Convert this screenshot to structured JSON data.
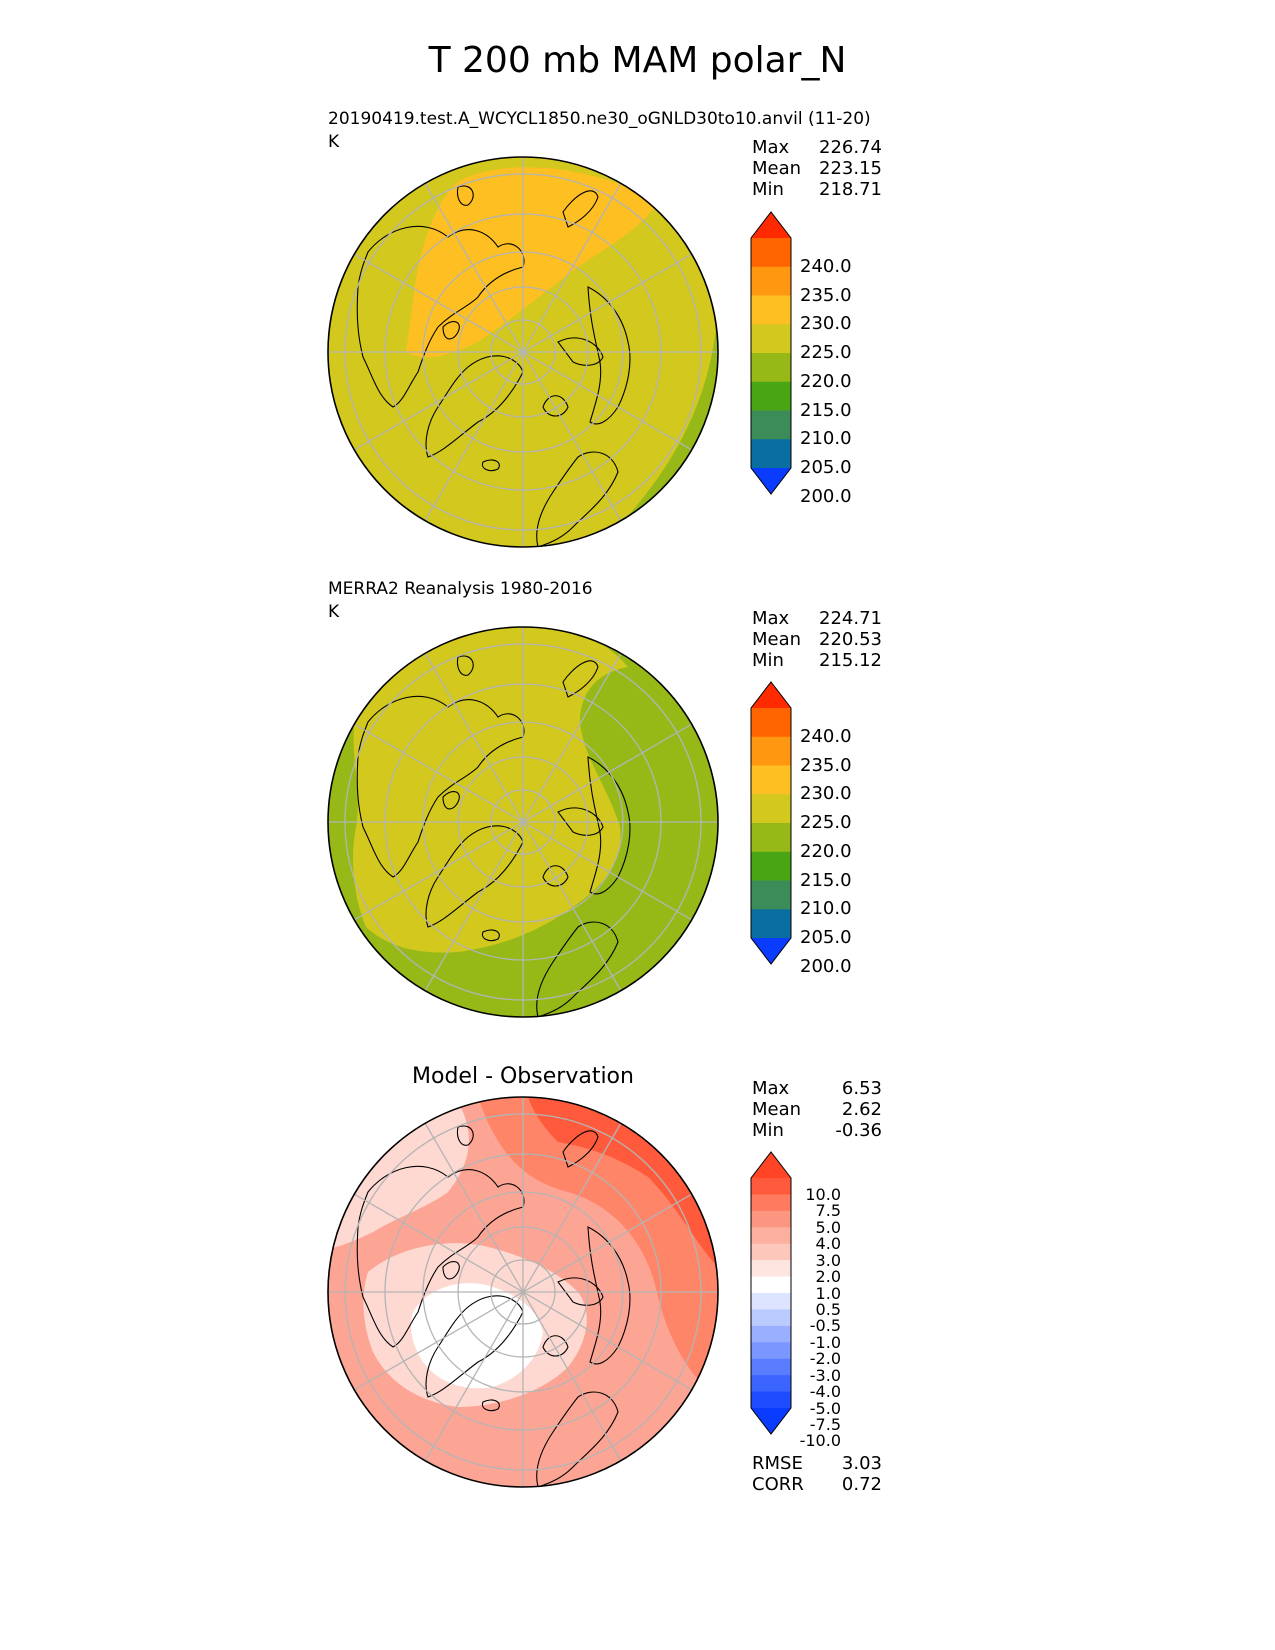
{
  "title": "T 200 mb MAM polar_N",
  "colors": {
    "c240_plus": "#ff2a00",
    "c235": "#ff6400",
    "c230": "#ff9810",
    "c225": "#fdbf22",
    "c220": "#d2c81e",
    "c215": "#96b918",
    "c210": "#4aa514",
    "c205": "#3c8c5a",
    "c200": "#0a6ea0",
    "c200_minus": "#0a3cff",
    "diff_deep_red": "#ff4525",
    "diff_light_red": "#fdd9d2",
    "diff_white": "#ffffff",
    "diff_blue": "#0a3cff",
    "grid": "#b4b4b4",
    "coast": "#000000"
  },
  "panels": [
    {
      "subtitle": "20190419.test.A_WCYCL1850.ne30_oGNLD30to10.anvil (11-20)",
      "units": "K",
      "stats": [
        {
          "label": "Max",
          "value": "226.74"
        },
        {
          "label": "Mean",
          "value": "223.15"
        },
        {
          "label": "Min",
          "value": "218.71"
        }
      ]
    },
    {
      "subtitle": "MERRA2 Reanalysis 1980-2016",
      "units": "K",
      "stats": [
        {
          "label": "Max",
          "value": "224.71"
        },
        {
          "label": "Mean",
          "value": "220.53"
        },
        {
          "label": "Min",
          "value": "215.12"
        }
      ]
    },
    {
      "subtitle": "Model - Observation",
      "stats": [
        {
          "label": "Max",
          "value": "6.53"
        },
        {
          "label": "Mean",
          "value": "2.62"
        },
        {
          "label": "Min",
          "value": "-0.36"
        }
      ],
      "metrics": [
        {
          "label": "RMSE",
          "value": "3.03"
        },
        {
          "label": "CORR",
          "value": "0.72"
        }
      ]
    }
  ],
  "chart_data": [
    {
      "type": "heatmap",
      "projection": "north polar stereographic",
      "title": "20190419.test.A_WCYCL1850.ne30_oGNLD30to10.anvil (11-20)",
      "units": "K",
      "field_stats": {
        "max": 226.74,
        "mean": 223.15,
        "min": 218.71
      },
      "colorbar_levels": [
        200,
        205,
        210,
        215,
        220,
        225,
        230,
        235,
        240
      ],
      "colorbar_tick_labels": [
        "240.0",
        "235.0",
        "230.0",
        "225.0",
        "220.0",
        "215.0",
        "210.0",
        "205.0",
        "200.0"
      ],
      "colorbar_extend": "both",
      "dominant_ranges": [
        {
          "range": [
            220,
            225
          ],
          "region": "most of domain"
        },
        {
          "range": [
            225,
            230
          ],
          "region": "North America / Canadian Archipelago sector"
        },
        {
          "range": [
            215,
            220
          ],
          "region": "Europe / North Atlantic edge"
        }
      ]
    },
    {
      "type": "heatmap",
      "projection": "north polar stereographic",
      "title": "MERRA2 Reanalysis 1980-2016",
      "units": "K",
      "field_stats": {
        "max": 224.71,
        "mean": 220.53,
        "min": 215.12
      },
      "colorbar_levels": [
        200,
        205,
        210,
        215,
        220,
        225,
        230,
        235,
        240
      ],
      "colorbar_tick_labels": [
        "240.0",
        "235.0",
        "230.0",
        "225.0",
        "220.0",
        "215.0",
        "210.0",
        "205.0",
        "200.0"
      ],
      "colorbar_extend": "both",
      "dominant_ranges": [
        {
          "range": [
            220,
            225
          ],
          "region": "polar cap and North America"
        },
        {
          "range": [
            215,
            220
          ],
          "region": "Eurasian / Atlantic outer ring"
        }
      ]
    },
    {
      "type": "heatmap",
      "projection": "north polar stereographic",
      "title": "Model - Observation",
      "field_stats": {
        "max": 6.53,
        "mean": 2.62,
        "min": -0.36
      },
      "rmse": 3.03,
      "corr": 0.72,
      "colorbar_levels": [
        -10,
        -7.5,
        -5,
        -4,
        -3,
        -2,
        -1,
        -0.5,
        0.5,
        1,
        2,
        3,
        4,
        5,
        7.5,
        10
      ],
      "colorbar_tick_labels": [
        "10.0",
        "7.5",
        "5.0",
        "4.0",
        "3.0",
        "2.0",
        "1.0",
        "0.5",
        "-0.5",
        "-1.0",
        "-2.0",
        "-3.0",
        "-4.0",
        "-5.0",
        "-7.5",
        "-10.0"
      ],
      "colorbar_extend": "both",
      "dominant_ranges": [
        {
          "range": [
            5,
            7.5
          ],
          "region": "Eurasian Arctic / Siberia sector"
        },
        {
          "range": [
            1,
            4
          ],
          "region": "most of domain"
        },
        {
          "range": [
            -0.5,
            0.5
          ],
          "region": "Canadian Arctic / Greenland sector"
        }
      ]
    }
  ]
}
